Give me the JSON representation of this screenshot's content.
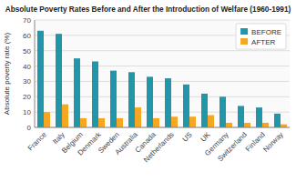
{
  "chart_data": {
    "type": "bar",
    "title": "Absolute Poverty Rates Before and After the Introduction of Welfare (1960-1991)",
    "ylabel": "Absolute poverty rate (%)",
    "categories": [
      "France",
      "Italy",
      "Belgium",
      "Denmark",
      "Sweden",
      "Australia",
      "Canada",
      "Netherlands",
      "US",
      "UK",
      "Germany",
      "Switzerland",
      "Finland",
      "Norway"
    ],
    "series": [
      {
        "name": "BEFORE",
        "color": "#2196a8",
        "values": [
          63,
          61,
          45,
          43,
          37,
          36,
          33,
          32,
          28,
          22,
          20,
          14,
          13,
          9
        ]
      },
      {
        "name": "AFTER",
        "color": "#f5a623",
        "values": [
          10,
          15,
          6,
          6,
          6,
          13,
          6,
          7,
          7,
          8,
          3,
          3,
          3,
          2
        ]
      }
    ],
    "ylim": [
      0,
      70
    ],
    "yticks": [
      0,
      10,
      20,
      30,
      40,
      50,
      60,
      70
    ],
    "grid": true,
    "legend": "upper right"
  }
}
